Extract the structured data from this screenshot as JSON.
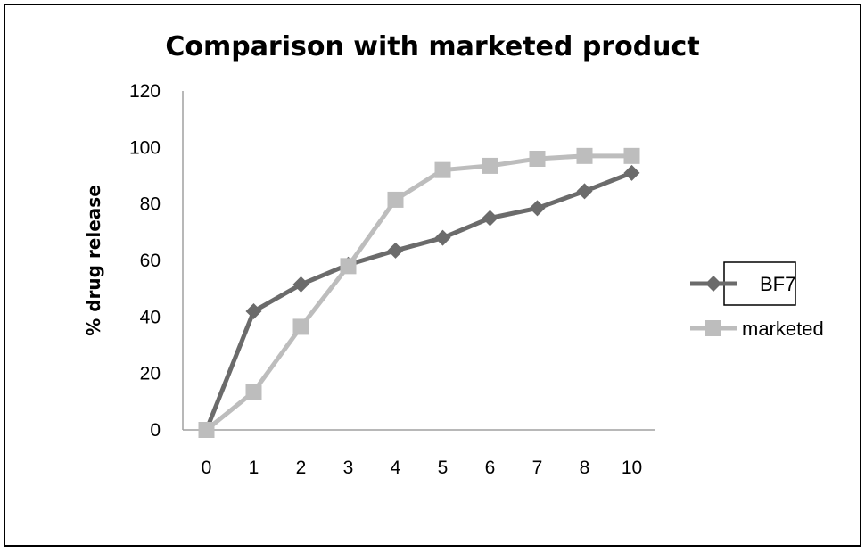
{
  "chart_data": {
    "type": "line",
    "title": "Comparison with marketed product",
    "xlabel": "",
    "ylabel": "% drug release",
    "categories": [
      "0",
      "1",
      "2",
      "3",
      "4",
      "5",
      "6",
      "7",
      "8",
      "10"
    ],
    "ylim": [
      0,
      120
    ],
    "yticks": [
      "0",
      "20",
      "40",
      "60",
      "80",
      "100",
      "120"
    ],
    "grid": false,
    "legend_position": "right",
    "series": [
      {
        "name": "BF7",
        "marker": "diamond",
        "color": "#6b6b6b",
        "values": [
          0,
          42,
          51.5,
          58.5,
          63.5,
          68,
          75,
          78.5,
          84.5,
          91
        ]
      },
      {
        "name": "marketed",
        "marker": "square",
        "color": "#bdbdbd",
        "values": [
          0,
          13.5,
          36.5,
          58,
          81.5,
          92,
          93.5,
          96,
          97,
          97
        ]
      }
    ]
  }
}
